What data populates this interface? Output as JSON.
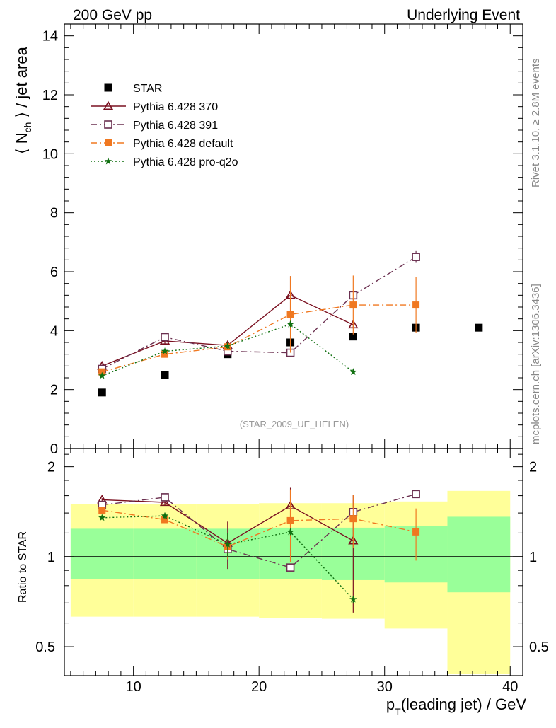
{
  "header": {
    "left": "200 GeV pp",
    "right": "Underlying Event"
  },
  "side_text": {
    "top": "Rivet 3.1.10, ≥ 2.8M events",
    "bottom": "mcplots.cern.ch [arXiv:1306.3436]"
  },
  "watermark": "(STAR_2009_UE_HELEN)",
  "chart_data": {
    "type": "scatter",
    "x_label": {
      "pre": "p",
      "sub": "T",
      "post": "(leading jet) / GeV"
    },
    "main": {
      "y_label": {
        "pre": "⟨ N",
        "sub": "ch",
        "post": " ⟩ / jet area"
      },
      "xlim": [
        4.5,
        41
      ],
      "ylim": [
        0,
        14.4
      ],
      "y_ticks": [
        0,
        2,
        4,
        6,
        8,
        10,
        12,
        14
      ],
      "x_ticks": [
        10,
        20,
        30,
        40
      ],
      "grid": false
    },
    "ratio": {
      "y_label": "Ratio to STAR",
      "scale": "log",
      "ylim": [
        0.4,
        2.3
      ],
      "y_ticks": [
        0.5,
        1,
        2
      ],
      "y_tick_labels": [
        "0.5",
        "1",
        "2"
      ],
      "reference": 1,
      "bands": [
        {
          "x": [
            5,
            10
          ],
          "green": [
            0.842,
            1.24
          ],
          "yellow": [
            0.63,
            1.5
          ]
        },
        {
          "x": [
            10,
            15
          ],
          "green": [
            0.842,
            1.24
          ],
          "yellow": [
            0.63,
            1.5
          ]
        },
        {
          "x": [
            15,
            20
          ],
          "green": [
            0.842,
            1.24
          ],
          "yellow": [
            0.63,
            1.5
          ]
        },
        {
          "x": [
            20,
            25
          ],
          "green": [
            0.84,
            1.25
          ],
          "yellow": [
            0.625,
            1.51
          ]
        },
        {
          "x": [
            25,
            30
          ],
          "green": [
            0.835,
            1.25
          ],
          "yellow": [
            0.62,
            1.51
          ]
        },
        {
          "x": [
            30,
            35
          ],
          "green": [
            0.82,
            1.27
          ],
          "yellow": [
            0.575,
            1.53
          ]
        },
        {
          "x": [
            35,
            40
          ],
          "green": [
            0.76,
            1.36
          ],
          "yellow": [
            0.405,
            1.66
          ]
        }
      ],
      "band_colors": {
        "green": "#99ff99",
        "yellow": "#ffff99"
      }
    },
    "legend_position": "top-left",
    "series": [
      {
        "name": "STAR",
        "color": "#000000",
        "marker": "filled-square",
        "line": "none",
        "x": [
          7.5,
          12.5,
          17.5,
          22.5,
          27.5,
          32.5,
          37.5
        ],
        "y": [
          1.9,
          2.5,
          3.2,
          3.6,
          3.8,
          4.1,
          4.1
        ]
      },
      {
        "name": "Pythia 6.428 370",
        "color": "#7a1020",
        "marker": "open-triangle",
        "line": "solid",
        "x": [
          7.5,
          12.5,
          17.5,
          22.5,
          27.5
        ],
        "y": [
          2.8,
          3.65,
          3.5,
          5.2,
          4.2
        ],
        "yerr": [
          0.05,
          0.1,
          0.15,
          0.65,
          0.1
        ],
        "ratio": [
          1.55,
          1.52,
          1.11,
          1.48,
          1.13
        ],
        "ratio_err": [
          0.02,
          0.03,
          0.2,
          0.22,
          0.48
        ]
      },
      {
        "name": "Pythia 6.428 391",
        "color": "#6b3050",
        "marker": "open-square",
        "line": "dash-dot",
        "x": [
          7.5,
          12.5,
          17.5,
          22.5,
          27.5,
          32.5
        ],
        "y": [
          2.7,
          3.78,
          3.3,
          3.25,
          5.2,
          6.5
        ],
        "yerr": [
          0.05,
          0.1,
          0.12,
          0.05,
          0.15,
          0.2
        ],
        "ratio": [
          1.49,
          1.58,
          1.06,
          0.92,
          1.41,
          1.62
        ],
        "ratio_err": [
          0.02,
          0.03,
          0.1,
          0.02,
          0.04,
          0.03
        ]
      },
      {
        "name": "Pythia 6.428 default",
        "color": "#f07820",
        "marker": "filled-square",
        "line": "dash-dot",
        "x": [
          7.5,
          12.5,
          17.5,
          22.5,
          27.5,
          32.5
        ],
        "y": [
          2.6,
          3.2,
          3.45,
          4.55,
          4.87,
          4.87
        ],
        "yerr": [
          0.05,
          0.08,
          0.1,
          1.3,
          1.0,
          0.95
        ],
        "ratio": [
          1.43,
          1.33,
          1.08,
          1.32,
          1.34,
          1.21
        ],
        "ratio_err": [
          0.02,
          0.03,
          0.1,
          0.36,
          0.27,
          0.24
        ]
      },
      {
        "name": "Pythia 6.428 pro-q2o",
        "color": "#107010",
        "marker": "star",
        "line": "dotted",
        "x": [
          7.5,
          12.5,
          17.5,
          22.5,
          27.5
        ],
        "y": [
          2.47,
          3.3,
          3.48,
          4.22,
          2.6
        ],
        "yerr": [
          0.04,
          0.06,
          0.1,
          0.1,
          0.05
        ],
        "ratio": [
          1.35,
          1.37,
          1.1,
          1.21,
          0.72
        ],
        "ratio_err": [
          0.02,
          0.03,
          0.1,
          0.03,
          0.02
        ]
      }
    ]
  }
}
